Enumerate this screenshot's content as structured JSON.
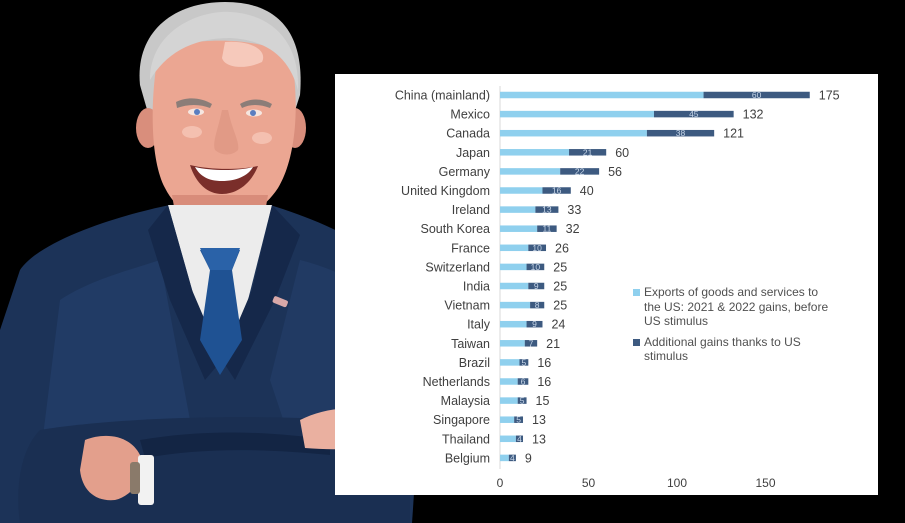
{
  "chart_data": {
    "type": "bar",
    "orientation": "horizontal",
    "stacked": true,
    "title": "",
    "xlabel": "",
    "ylabel": "",
    "xlim": [
      0,
      175
    ],
    "xticks": [
      0,
      50,
      100,
      150
    ],
    "tick_labels": [
      "0",
      "50",
      "100",
      "150"
    ],
    "grid": false,
    "legend_position": "right-middle",
    "categories": [
      "China (mainland)",
      "Mexico",
      "Canada",
      "Japan",
      "Germany",
      "United Kingdom",
      "Ireland",
      "South Korea",
      "France",
      "Switzerland",
      "India",
      "Vietnam",
      "Italy",
      "Taiwan",
      "Brazil",
      "Netherlands",
      "Malaysia",
      "Singapore",
      "Thailand",
      "Belgium"
    ],
    "series": [
      {
        "name": "Exports of goods and services to the US: 2021 & 2022 gains, before US stimulus",
        "color": "#8fd0ee",
        "values": [
          115,
          87,
          83,
          39,
          34,
          24,
          20,
          21,
          16,
          15,
          16,
          17,
          15,
          14,
          11,
          10,
          10,
          8,
          9,
          5
        ]
      },
      {
        "name": "Additional gains thanks to US stimulus",
        "color": "#3d5a80",
        "values": [
          60,
          45,
          38,
          21,
          22,
          16,
          13,
          11,
          10,
          10,
          9,
          8,
          9,
          7,
          5,
          6,
          5,
          5,
          4,
          4
        ]
      }
    ],
    "totals": [
      175,
      132,
      121,
      60,
      56,
      40,
      33,
      32,
      26,
      25,
      25,
      25,
      24,
      21,
      16,
      16,
      15,
      13,
      13,
      9
    ]
  },
  "legend": {
    "items": [
      {
        "label": "Exports of goods and services to the US: 2021 & 2022 gains, before US stimulus",
        "color": "#8fd0ee"
      },
      {
        "label": "Additional gains thanks to US stimulus",
        "color": "#3d5a80"
      }
    ]
  },
  "illustration": {
    "subject": "cartoon portrait of smiling man in navy suit with blue tie, arms crossed",
    "suit_color": "#1c3358",
    "tie_color": "#1f5293",
    "skin_color": "#eaa590",
    "hair_color": "#c9c9c9",
    "background_color": "#000000"
  }
}
